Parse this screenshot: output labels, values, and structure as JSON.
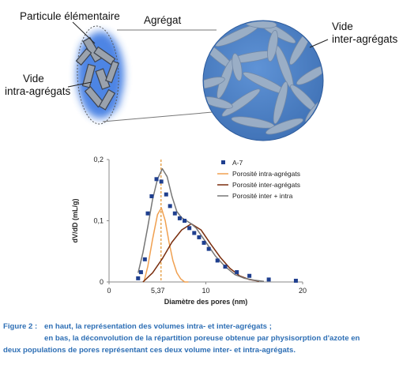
{
  "diagram": {
    "labels": {
      "particle": "Particule élémentaire",
      "aggregate": "Agrégat",
      "intra_void_line1": "Vide",
      "intra_void_line2": "intra-agrégats",
      "inter_void_line1": "Vide",
      "inter_void_line2": "inter-agrégats"
    },
    "colors": {
      "aggregate_fill": "#4a7fc3",
      "particle_fill": "#8fa3bd",
      "glow": "#2f6fe0"
    }
  },
  "chart_data": {
    "type": "line",
    "xlabel": "Diamètre des pores (nm)",
    "ylabel": "dV/dD (mL/g)",
    "xlim": [
      0,
      20
    ],
    "ylim": [
      0,
      0.2
    ],
    "xticks": [
      "0",
      "10",
      "20"
    ],
    "yticks": [
      "0",
      "0,1",
      "0,2"
    ],
    "marker_line": {
      "x": 5.37,
      "label": "5,37",
      "color": "#e59a3b"
    },
    "series": [
      {
        "name": "A-7",
        "kind": "scatter",
        "color": "#1f3f8f",
        "x": [
          3.0,
          3.3,
          3.7,
          4.0,
          4.4,
          4.9,
          5.4,
          5.9,
          6.3,
          6.8,
          7.3,
          7.8,
          8.3,
          8.8,
          9.3,
          9.8,
          10.3,
          11.2,
          12.0,
          13.2,
          14.5,
          16.5,
          19.3
        ],
        "y": [
          0.006,
          0.016,
          0.037,
          0.112,
          0.14,
          0.168,
          0.164,
          0.143,
          0.124,
          0.112,
          0.104,
          0.1,
          0.088,
          0.08,
          0.073,
          0.064,
          0.054,
          0.035,
          0.025,
          0.016,
          0.01,
          0.004,
          0.002
        ]
      },
      {
        "name": "Porosité intra-agrégats",
        "kind": "line",
        "color": "#f0a050",
        "x": [
          3.6,
          4.0,
          4.5,
          5.0,
          5.4,
          5.8,
          6.2,
          6.6,
          7.0,
          7.4,
          7.8,
          8.2
        ],
        "y": [
          0.0,
          0.025,
          0.07,
          0.11,
          0.121,
          0.1,
          0.065,
          0.035,
          0.015,
          0.005,
          0.0,
          0.0
        ]
      },
      {
        "name": "Porosité inter-agrégats",
        "kind": "line",
        "color": "#7a2e0e",
        "x": [
          3.5,
          4.5,
          5.5,
          6.5,
          7.5,
          8.5,
          9.5,
          10.5,
          11.5,
          12.5,
          13.5,
          14.5,
          15.5
        ],
        "y": [
          0.0,
          0.015,
          0.038,
          0.065,
          0.085,
          0.095,
          0.085,
          0.062,
          0.04,
          0.022,
          0.01,
          0.004,
          0.001
        ]
      },
      {
        "name": "Porosité inter + intra",
        "kind": "line",
        "color": "#777777",
        "x": [
          3.0,
          3.5,
          4.0,
          4.5,
          5.0,
          5.5,
          6.0,
          6.5,
          7.0,
          7.5,
          8.0,
          8.5,
          9.0,
          10.0,
          11.0,
          12.0,
          13.0,
          14.0,
          15.0,
          16.0
        ],
        "y": [
          0.015,
          0.048,
          0.09,
          0.135,
          0.168,
          0.185,
          0.172,
          0.14,
          0.115,
          0.105,
          0.1,
          0.095,
          0.088,
          0.065,
          0.042,
          0.025,
          0.012,
          0.006,
          0.003,
          0.001
        ]
      }
    ]
  },
  "caption": {
    "label": "Figure 2 :",
    "line1": "en haut, la représentation des volumes intra- et inter-agrégats ;",
    "line2": "en bas, la déconvolution de la répartition poreuse obtenue par physisorption d'azote en",
    "line3": "deux populations de pores représentant ces deux volume inter- et intra-agrégats."
  }
}
